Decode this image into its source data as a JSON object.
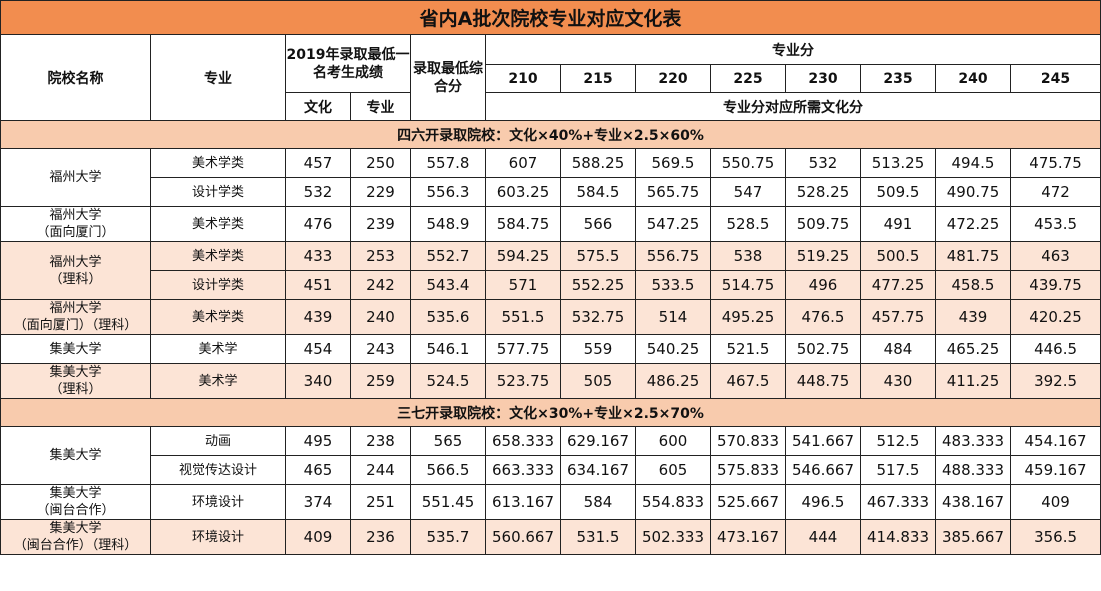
{
  "title": "省内A批次院校专业对应文化表",
  "header": {
    "school_col": "院校名称",
    "major_col": "专业",
    "min_score_col": "2019年录取最低一名考生成绩",
    "culture_col": "文化",
    "specialty_col": "专业",
    "composite_col": "录取最低综合分",
    "specialty_score_col": "专业分",
    "specialty_scores": [
      "210",
      "215",
      "220",
      "225",
      "230",
      "235",
      "240",
      "245"
    ],
    "required_note": "专业分对应所需文化分"
  },
  "sections": [
    {
      "label": "四六开录取院校：文化×40%+专业×2.5×60%",
      "groups": [
        {
          "school": "福州大学",
          "color": "#ffffff",
          "rows": [
            {
              "major": "美术学类",
              "culture": "457",
              "specialty": "250",
              "composite": "557.8",
              "values": [
                "607",
                "588.25",
                "569.5",
                "550.75",
                "532",
                "513.25",
                "494.5",
                "475.75"
              ]
            },
            {
              "major": "设计学类",
              "culture": "532",
              "specialty": "229",
              "composite": "556.3",
              "values": [
                "603.25",
                "584.5",
                "565.75",
                "547",
                "528.25",
                "509.5",
                "490.75",
                "472"
              ]
            }
          ]
        },
        {
          "school": "福州大学\n（面向厦门）",
          "color": "#ffffff",
          "rows": [
            {
              "major": "美术学类",
              "culture": "476",
              "specialty": "239",
              "composite": "548.9",
              "values": [
                "584.75",
                "566",
                "547.25",
                "528.5",
                "509.75",
                "491",
                "472.25",
                "453.5"
              ]
            }
          ]
        },
        {
          "school": "福州大学\n（理科）",
          "color": "#fce4d6",
          "rows": [
            {
              "major": "美术学类",
              "culture": "433",
              "specialty": "253",
              "composite": "552.7",
              "values": [
                "594.25",
                "575.5",
                "556.75",
                "538",
                "519.25",
                "500.5",
                "481.75",
                "463"
              ]
            },
            {
              "major": "设计学类",
              "culture": "451",
              "specialty": "242",
              "composite": "543.4",
              "values": [
                "571",
                "552.25",
                "533.5",
                "514.75",
                "496",
                "477.25",
                "458.5",
                "439.75"
              ]
            }
          ]
        },
        {
          "school": "福州大学\n（面向厦门）（理科）",
          "color": "#fce4d6",
          "rows": [
            {
              "major": "美术学类",
              "culture": "439",
              "specialty": "240",
              "composite": "535.6",
              "values": [
                "551.5",
                "532.75",
                "514",
                "495.25",
                "476.5",
                "457.75",
                "439",
                "420.25"
              ]
            }
          ]
        },
        {
          "school": "集美大学",
          "color": "#ffffff",
          "rows": [
            {
              "major": "美术学",
              "culture": "454",
              "specialty": "243",
              "composite": "546.1",
              "values": [
                "577.75",
                "559",
                "540.25",
                "521.5",
                "502.75",
                "484",
                "465.25",
                "446.5"
              ]
            }
          ]
        },
        {
          "school": "集美大学\n（理科）",
          "color": "#fce4d6",
          "rows": [
            {
              "major": "美术学",
              "culture": "340",
              "specialty": "259",
              "composite": "524.5",
              "values": [
                "523.75",
                "505",
                "486.25",
                "467.5",
                "448.75",
                "430",
                "411.25",
                "392.5"
              ]
            }
          ]
        }
      ]
    },
    {
      "label": "三七开录取院校：文化×30%+专业×2.5×70%",
      "groups": [
        {
          "school": "集美大学",
          "color": "#ffffff",
          "rows": [
            {
              "major": "动画",
              "culture": "495",
              "specialty": "238",
              "composite": "565",
              "values": [
                "658.333",
                "629.167",
                "600",
                "570.833",
                "541.667",
                "512.5",
                "483.333",
                "454.167"
              ]
            },
            {
              "major": "视觉传达设计",
              "culture": "465",
              "specialty": "244",
              "composite": "566.5",
              "values": [
                "663.333",
                "634.167",
                "605",
                "575.833",
                "546.667",
                "517.5",
                "488.333",
                "459.167"
              ]
            }
          ]
        },
        {
          "school": "集美大学\n（闽台合作）",
          "color": "#ffffff",
          "rows": [
            {
              "major": "环境设计",
              "culture": "374",
              "specialty": "251",
              "composite": "551.45",
              "values": [
                "613.167",
                "584",
                "554.833",
                "525.667",
                "496.5",
                "467.333",
                "438.167",
                "409"
              ]
            }
          ]
        },
        {
          "school": "集美大学\n（闽台合作）（理科）",
          "color": "#fce4d6",
          "rows": [
            {
              "major": "环境设计",
              "culture": "409",
              "specialty": "236",
              "composite": "535.7",
              "values": [
                "560.667",
                "531.5",
                "502.333",
                "473.167",
                "444",
                "414.833",
                "385.667",
                "356.5"
              ]
            }
          ]
        }
      ]
    }
  ]
}
